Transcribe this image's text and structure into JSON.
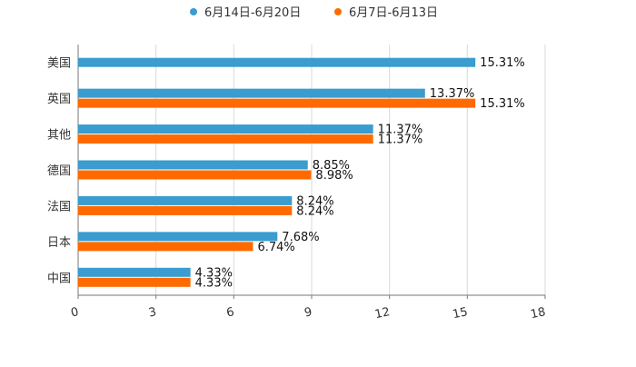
{
  "chart_data": {
    "type": "bar",
    "orientation": "horizontal",
    "title": "",
    "xlabel": "",
    "ylabel": "",
    "xlim": [
      0,
      18
    ],
    "ticks": [
      0,
      3,
      6,
      9,
      12,
      15,
      18
    ],
    "grid": true,
    "legend_position": "top-center",
    "categories": [
      "美国",
      "英国",
      "其他",
      "德国",
      "法国",
      "日本",
      "中国"
    ],
    "series": [
      {
        "name": "6月14日-6月20日",
        "color": "#3a9ccf",
        "values": [
          15.31,
          13.37,
          11.37,
          8.85,
          8.24,
          7.68,
          4.33
        ],
        "labels": [
          "15.31%",
          "13.37%",
          "11.37%",
          "8.85%",
          "8.24%",
          "7.68%",
          "4.33%"
        ]
      },
      {
        "name": "6月7日-6月13日",
        "color": "#ff6a00",
        "values": [
          null,
          15.31,
          11.37,
          8.98,
          8.24,
          6.74,
          4.33
        ],
        "labels": [
          "",
          "15.31%",
          "11.37%",
          "8.98%",
          "8.24%",
          "6.74%",
          "4.33%"
        ]
      }
    ]
  }
}
